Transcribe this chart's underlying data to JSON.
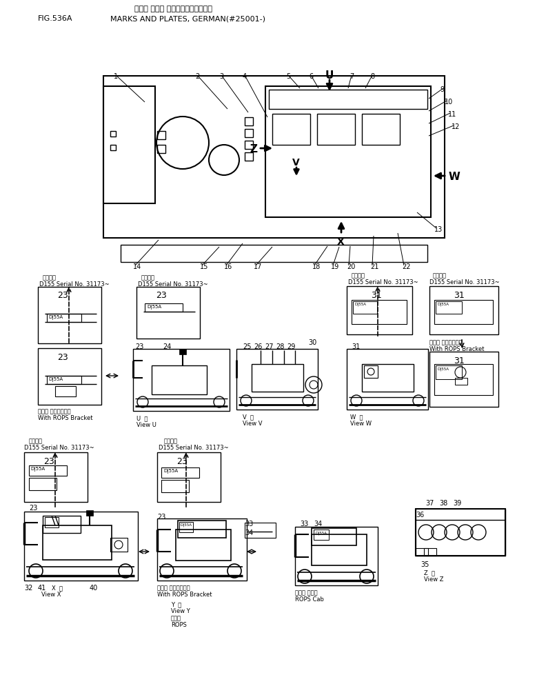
{
  "title_line1": "マーク オヨビ プレート（ドイツゴ）",
  "title_line2": "MARKS AND PLATES, GERMAN(#25001-)",
  "fig_label": "FIG.536A",
  "background_color": "#ffffff",
  "line_color": "#000000",
  "fig_width": 7.79,
  "fig_height": 10.08,
  "dpi": 100,
  "tekiyo": "適用号廃",
  "d155_serial": "D155 Serial No. 31173~",
  "rops_bracket_ja": "ロプス ブラケット付",
  "rops_bracket_en": "With ROPS Bracket",
  "rops_cab_ja": "ロプス キャブ",
  "rops_cab_en": "ROPS Cab",
  "rops_ja": "ロプス",
  "rops_en": "ROPS",
  "view_u_ja": "U  横",
  "view_u_en": "View U",
  "view_v_ja": "V  横",
  "view_v_en": "View V",
  "view_w_ja": "W  横",
  "view_w_en": "View W",
  "view_x_ja": "X  横",
  "view_x_en": "View X",
  "view_y_ja": "Y  横",
  "view_y_en": "View Y",
  "view_z_ja": "Z  横",
  "view_z_en": "View Z"
}
